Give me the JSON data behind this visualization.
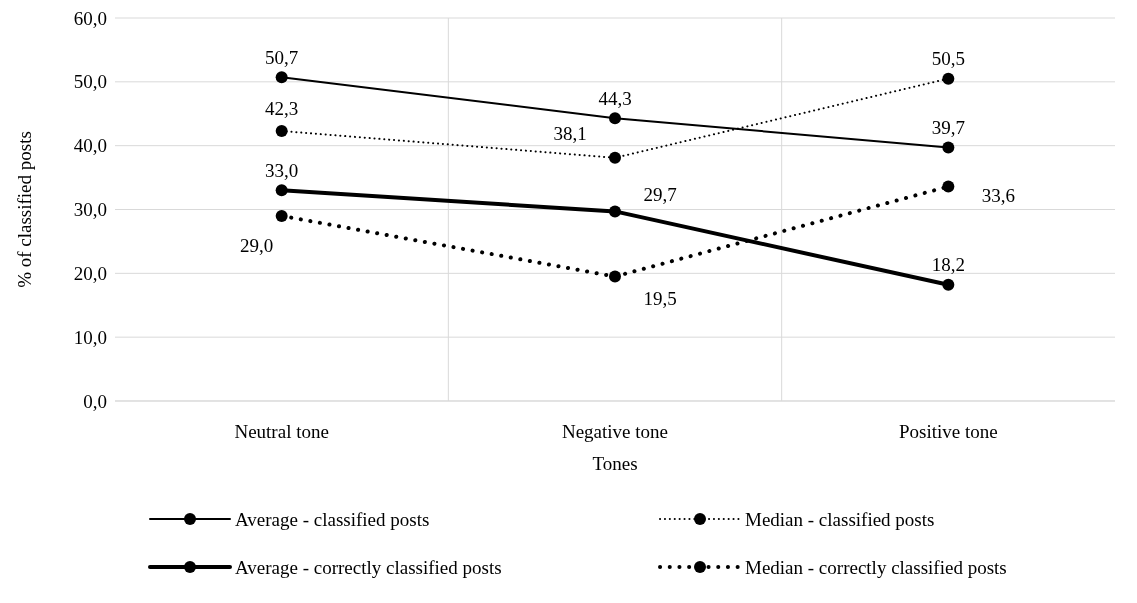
{
  "chart_data": {
    "type": "line",
    "xlabel": "Tones",
    "ylabel": "% of classified posts",
    "categories": [
      "Neutral tone",
      "Negative tone",
      "Positive tone"
    ],
    "ylim": [
      0,
      60
    ],
    "yticks": [
      {
        "value": 0,
        "label": "0,0"
      },
      {
        "value": 10,
        "label": "10,0"
      },
      {
        "value": 20,
        "label": "20,0"
      },
      {
        "value": 30,
        "label": "30,0"
      },
      {
        "value": 40,
        "label": "40,0"
      },
      {
        "value": 50,
        "label": "50,0"
      },
      {
        "value": 60,
        "label": "60,0"
      }
    ],
    "grid": true,
    "legend": "bottom",
    "marker": "circle",
    "series": [
      {
        "name": "Average - classified posts",
        "color": "#000000",
        "line_style": "solid",
        "values": [
          50.7,
          44.3,
          39.7
        ],
        "value_labels": [
          "50,7",
          "44,3",
          "39,7"
        ]
      },
      {
        "name": "Median - classified posts",
        "color": "#000000",
        "line_style": "dotted",
        "values": [
          42.3,
          38.1,
          50.5
        ],
        "value_labels": [
          "42,3",
          "38,1",
          "50,5"
        ]
      },
      {
        "name": "Average - correctly classified posts",
        "color": "#000000",
        "line_style": "solid",
        "values": [
          33.0,
          29.7,
          18.2
        ],
        "value_labels": [
          "33,0",
          "29,7",
          "18,2"
        ]
      },
      {
        "name": "Median - correctly classified posts",
        "color": "#000000",
        "line_style": "dotted",
        "values": [
          29.0,
          19.5,
          33.6
        ],
        "value_labels": [
          "29,0",
          "19,5",
          "33,6"
        ]
      }
    ]
  }
}
